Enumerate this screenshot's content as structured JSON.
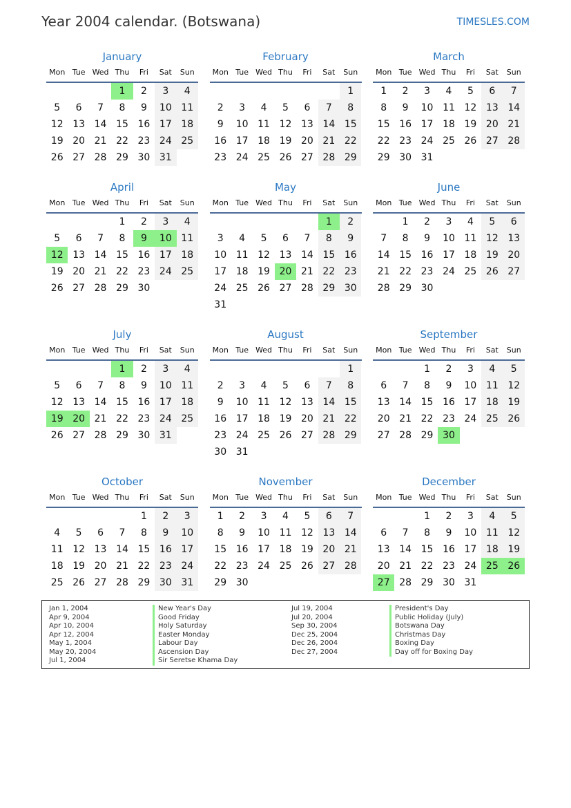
{
  "header": {
    "title": "Year 2004 calendar. (Botswana)",
    "brand": "TIMESLES.COM"
  },
  "colors": {
    "accent": "#2b78c2",
    "holiday": "#8ef08a",
    "weekend": "#f2f2f2"
  },
  "weekdays": [
    "Mon",
    "Tue",
    "Wed",
    "Thu",
    "Fri",
    "Sat",
    "Sun"
  ],
  "months": [
    {
      "name": "January",
      "first_weekday": 3,
      "days": 31,
      "holidays": [
        1
      ]
    },
    {
      "name": "February",
      "first_weekday": 6,
      "days": 29,
      "holidays": []
    },
    {
      "name": "March",
      "first_weekday": 0,
      "days": 31,
      "holidays": []
    },
    {
      "name": "April",
      "first_weekday": 3,
      "days": 30,
      "holidays": [
        9,
        10,
        12
      ]
    },
    {
      "name": "May",
      "first_weekday": 5,
      "days": 31,
      "holidays": [
        1,
        20
      ]
    },
    {
      "name": "June",
      "first_weekday": 1,
      "days": 30,
      "holidays": []
    },
    {
      "name": "July",
      "first_weekday": 3,
      "days": 31,
      "holidays": [
        1,
        19,
        20
      ]
    },
    {
      "name": "August",
      "first_weekday": 6,
      "days": 31,
      "holidays": []
    },
    {
      "name": "September",
      "first_weekday": 2,
      "days": 30,
      "holidays": [
        30
      ]
    },
    {
      "name": "October",
      "first_weekday": 4,
      "days": 31,
      "holidays": []
    },
    {
      "name": "November",
      "first_weekday": 0,
      "days": 30,
      "holidays": []
    },
    {
      "name": "December",
      "first_weekday": 2,
      "days": 31,
      "holidays": [
        25,
        26,
        27
      ]
    }
  ],
  "holidays": [
    {
      "date": "Jan 1, 2004",
      "name": "New Year's Day"
    },
    {
      "date": "Apr 9, 2004",
      "name": "Good Friday"
    },
    {
      "date": "Apr 10, 2004",
      "name": "Holy Saturday"
    },
    {
      "date": "Apr 12, 2004",
      "name": "Easter Monday"
    },
    {
      "date": "May 1, 2004",
      "name": "Labour Day"
    },
    {
      "date": "May 20, 2004",
      "name": "Ascension Day"
    },
    {
      "date": "Jul 1, 2004",
      "name": "Sir Seretse Khama Day"
    },
    {
      "date": "Jul 19, 2004",
      "name": "President's Day"
    },
    {
      "date": "Jul 20, 2004",
      "name": "Public Holiday (July)"
    },
    {
      "date": "Sep 30, 2004",
      "name": "Botswana Day"
    },
    {
      "date": "Dec 25, 2004",
      "name": "Christmas Day"
    },
    {
      "date": "Dec 26, 2004",
      "name": "Boxing Day"
    },
    {
      "date": "Dec 27, 2004",
      "name": "Day off for Boxing Day"
    }
  ]
}
